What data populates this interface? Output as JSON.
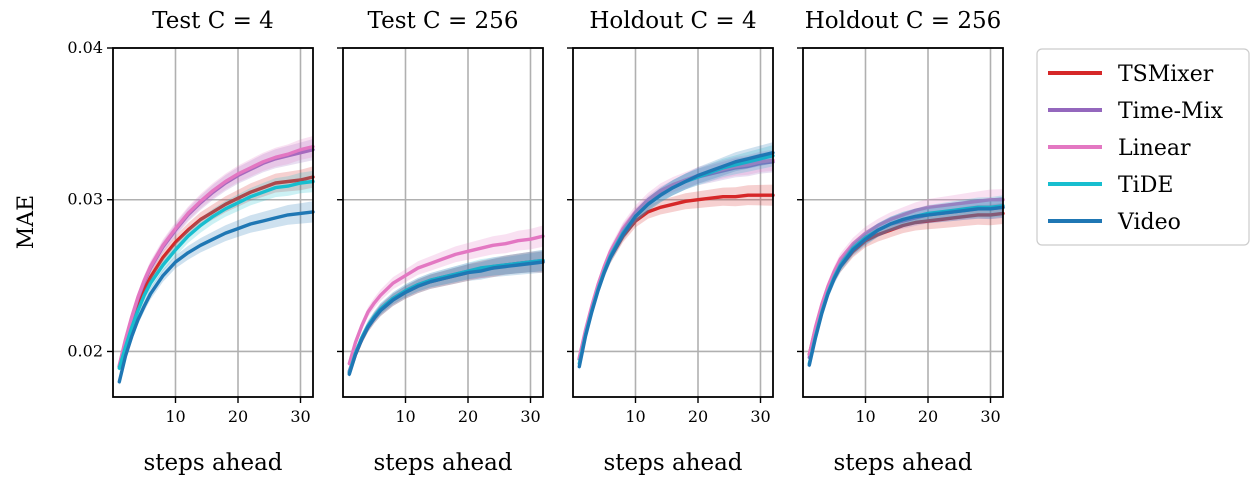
{
  "chart_data": {
    "type": "line",
    "ylabel": "MAE",
    "ylim": [
      0.017,
      0.04
    ],
    "y_ticks": [
      "0.02",
      "0.03",
      "0.04"
    ],
    "xlim": [
      0,
      32
    ],
    "x_ticks": [
      "10",
      "20",
      "30"
    ],
    "grid": true,
    "legend": {
      "placement": "right",
      "entries": [
        {
          "name": "TSMixer",
          "color": "#d62728"
        },
        {
          "name": "Time-Mix",
          "color": "#9467bd"
        },
        {
          "name": "Linear",
          "color": "#e377c2"
        },
        {
          "name": "TiDE",
          "color": "#17becf"
        },
        {
          "name": "Video",
          "color": "#1f77b4"
        }
      ]
    },
    "x": [
      1,
      2,
      3,
      4,
      5,
      6,
      8,
      10,
      12,
      14,
      16,
      18,
      20,
      22,
      24,
      26,
      28,
      30,
      32
    ],
    "panels": [
      {
        "title": "Test C = 4",
        "xlabel": "steps ahead",
        "series": [
          {
            "name": "TSMixer",
            "values": [
              0.019,
              0.0205,
              0.0219,
              0.0231,
              0.0241,
              0.0249,
              0.0262,
              0.0272,
              0.028,
              0.0287,
              0.0292,
              0.0297,
              0.0301,
              0.0305,
              0.0308,
              0.0311,
              0.0312,
              0.0313,
              0.0315
            ]
          },
          {
            "name": "Time-Mix",
            "values": [
              0.019,
              0.0207,
              0.0222,
              0.0235,
              0.0246,
              0.0255,
              0.0269,
              0.028,
              0.029,
              0.0298,
              0.0305,
              0.0311,
              0.0316,
              0.032,
              0.0324,
              0.0327,
              0.0329,
              0.0331,
              0.0333
            ]
          },
          {
            "name": "Linear",
            "values": [
              0.0191,
              0.0208,
              0.0223,
              0.0236,
              0.0247,
              0.0256,
              0.027,
              0.0281,
              0.0291,
              0.0299,
              0.0306,
              0.0312,
              0.0317,
              0.0321,
              0.0325,
              0.0328,
              0.033,
              0.0333,
              0.0335
            ]
          },
          {
            "name": "TiDE",
            "values": [
              0.0189,
              0.0203,
              0.0216,
              0.0227,
              0.0237,
              0.0245,
              0.0257,
              0.0267,
              0.0276,
              0.0283,
              0.0289,
              0.0294,
              0.0298,
              0.0302,
              0.0305,
              0.0308,
              0.0309,
              0.0311,
              0.0312
            ]
          },
          {
            "name": "Video",
            "values": [
              0.018,
              0.0197,
              0.021,
              0.0221,
              0.023,
              0.0238,
              0.025,
              0.0259,
              0.0265,
              0.027,
              0.0274,
              0.0278,
              0.0281,
              0.0284,
              0.0286,
              0.0288,
              0.029,
              0.0291,
              0.0292
            ]
          }
        ]
      },
      {
        "title": "Test C = 256",
        "xlabel": "steps ahead",
        "series": [
          {
            "name": "TSMixer",
            "values": [
              0.0186,
              0.0198,
              0.0208,
              0.0216,
              0.0222,
              0.0227,
              0.0234,
              0.0239,
              0.0243,
              0.0246,
              0.0248,
              0.025,
              0.0252,
              0.0254,
              0.0255,
              0.0257,
              0.0258,
              0.0259,
              0.0259
            ]
          },
          {
            "name": "Time-Mix",
            "values": [
              0.0187,
              0.0199,
              0.0209,
              0.0217,
              0.0223,
              0.0228,
              0.0235,
              0.024,
              0.0244,
              0.0247,
              0.0249,
              0.0251,
              0.0253,
              0.0254,
              0.0256,
              0.0257,
              0.0258,
              0.0259,
              0.026
            ]
          },
          {
            "name": "Linear",
            "values": [
              0.0192,
              0.0206,
              0.0217,
              0.0226,
              0.0232,
              0.0237,
              0.0245,
              0.025,
              0.0255,
              0.0258,
              0.0261,
              0.0264,
              0.0266,
              0.0268,
              0.027,
              0.0271,
              0.0273,
              0.0274,
              0.0276
            ]
          },
          {
            "name": "TiDE",
            "values": [
              0.0186,
              0.0199,
              0.0209,
              0.0217,
              0.0223,
              0.0228,
              0.0235,
              0.024,
              0.0244,
              0.0247,
              0.0249,
              0.0251,
              0.0253,
              0.0255,
              0.0256,
              0.0257,
              0.0258,
              0.0259,
              0.026
            ]
          },
          {
            "name": "Video",
            "values": [
              0.0185,
              0.0198,
              0.0208,
              0.0216,
              0.0222,
              0.0227,
              0.0234,
              0.0239,
              0.0243,
              0.0246,
              0.0248,
              0.025,
              0.0252,
              0.0253,
              0.0255,
              0.0256,
              0.0257,
              0.0258,
              0.0259
            ]
          }
        ]
      },
      {
        "title": "Holdout C = 4",
        "xlabel": "steps ahead",
        "series": [
          {
            "name": "TSMixer",
            "values": [
              0.0195,
              0.0213,
              0.0228,
              0.0242,
              0.0253,
              0.0262,
              0.0276,
              0.0286,
              0.0292,
              0.0295,
              0.0297,
              0.0299,
              0.03,
              0.0301,
              0.0302,
              0.0302,
              0.0303,
              0.0303,
              0.0303
            ]
          },
          {
            "name": "Time-Mix",
            "values": [
              0.0195,
              0.0213,
              0.0229,
              0.0243,
              0.0255,
              0.0265,
              0.028,
              0.029,
              0.0298,
              0.0304,
              0.0308,
              0.0312,
              0.0315,
              0.0317,
              0.0319,
              0.0321,
              0.0322,
              0.0324,
              0.0325
            ]
          },
          {
            "name": "Linear",
            "values": [
              0.0196,
              0.0214,
              0.023,
              0.0244,
              0.0256,
              0.0266,
              0.0281,
              0.0292,
              0.03,
              0.0306,
              0.031,
              0.0313,
              0.0316,
              0.0318,
              0.032,
              0.0322,
              0.0323,
              0.0325,
              0.0326
            ]
          },
          {
            "name": "TiDE",
            "values": [
              0.0192,
              0.0211,
              0.0227,
              0.0241,
              0.0253,
              0.0263,
              0.0278,
              0.0289,
              0.0297,
              0.0303,
              0.0308,
              0.0312,
              0.0315,
              0.0318,
              0.0321,
              0.0323,
              0.0325,
              0.0327,
              0.0329
            ]
          },
          {
            "name": "Video",
            "values": [
              0.019,
              0.021,
              0.0226,
              0.024,
              0.0252,
              0.0262,
              0.0277,
              0.0289,
              0.0297,
              0.0303,
              0.0308,
              0.0312,
              0.0316,
              0.0319,
              0.0322,
              0.0325,
              0.0327,
              0.0329,
              0.0331
            ]
          }
        ]
      },
      {
        "title": "Holdout C = 256",
        "xlabel": "steps ahead",
        "series": [
          {
            "name": "TSMixer",
            "values": [
              0.0198,
              0.0215,
              0.0229,
              0.024,
              0.0249,
              0.0256,
              0.0266,
              0.0273,
              0.0277,
              0.028,
              0.0283,
              0.0285,
              0.0286,
              0.0287,
              0.0288,
              0.0289,
              0.029,
              0.029,
              0.0291
            ]
          },
          {
            "name": "Time-Mix",
            "values": [
              0.0196,
              0.0213,
              0.0228,
              0.024,
              0.025,
              0.0258,
              0.0268,
              0.0275,
              0.028,
              0.0284,
              0.0286,
              0.0288,
              0.029,
              0.0291,
              0.0292,
              0.0293,
              0.0294,
              0.0294,
              0.0295
            ]
          },
          {
            "name": "Linear",
            "values": [
              0.0198,
              0.0216,
              0.0231,
              0.0243,
              0.0253,
              0.0261,
              0.0271,
              0.0278,
              0.0283,
              0.0287,
              0.029,
              0.0293,
              0.0295,
              0.0296,
              0.0297,
              0.0298,
              0.0299,
              0.03,
              0.03
            ]
          },
          {
            "name": "TiDE",
            "values": [
              0.0192,
              0.021,
              0.0226,
              0.0239,
              0.0249,
              0.0257,
              0.0268,
              0.0275,
              0.028,
              0.0284,
              0.0287,
              0.0289,
              0.0291,
              0.0292,
              0.0293,
              0.0294,
              0.0295,
              0.0295,
              0.0296
            ]
          },
          {
            "name": "Video",
            "values": [
              0.0191,
              0.0209,
              0.0225,
              0.0238,
              0.0248,
              0.0256,
              0.0267,
              0.0274,
              0.028,
              0.0284,
              0.0287,
              0.0289,
              0.029,
              0.0291,
              0.0292,
              0.0293,
              0.0294,
              0.0294,
              0.0295
            ]
          }
        ]
      }
    ]
  }
}
